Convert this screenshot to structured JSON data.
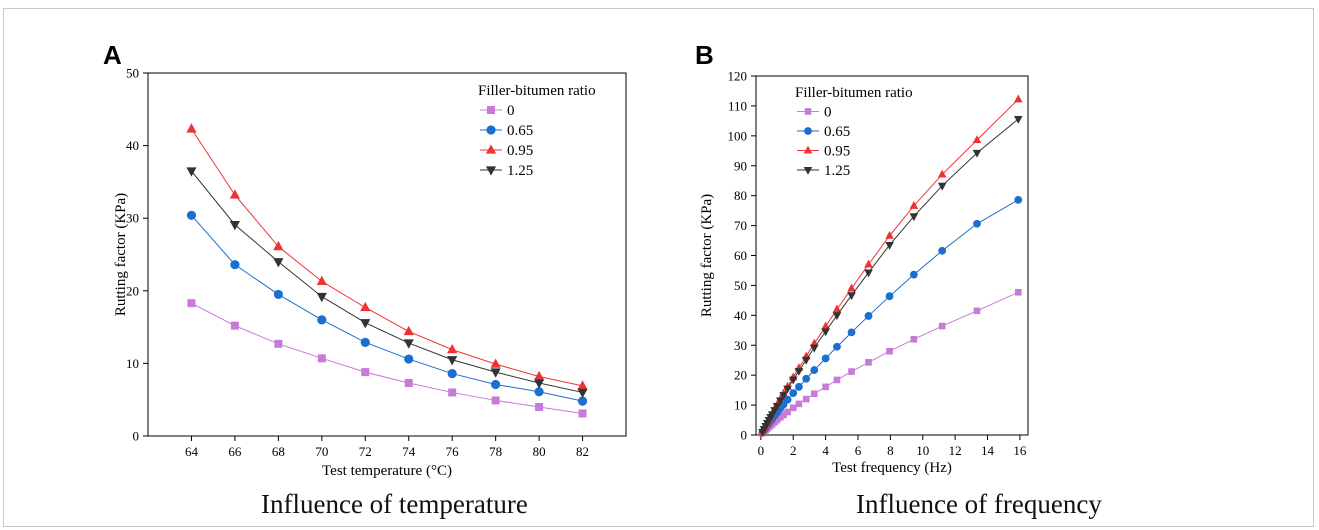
{
  "chart_data": [
    {
      "type": "line",
      "panel": "A",
      "caption": "Influence of temperature",
      "xlabel": "Test temperature (°C)",
      "ylabel": "Rutting factor (KPa)",
      "xlim": [
        62,
        84
      ],
      "ylim": [
        0,
        50
      ],
      "xticks": [
        64,
        66,
        68,
        70,
        72,
        74,
        76,
        78,
        80,
        82
      ],
      "yticks": [
        0,
        10,
        20,
        30,
        40,
        50
      ],
      "legend_title": "Filler-bitumen ratio",
      "legend_position": "top-right",
      "x": [
        64,
        66,
        68,
        70,
        72,
        74,
        76,
        78,
        80,
        82
      ],
      "series": [
        {
          "name": "0",
          "color": "#c77ad8",
          "marker": "square",
          "values": [
            18.3,
            15.2,
            12.7,
            10.7,
            8.8,
            7.3,
            6.0,
            4.9,
            4.0,
            3.1
          ]
        },
        {
          "name": "0.65",
          "color": "#1a6fd1",
          "marker": "circle",
          "values": [
            30.4,
            23.6,
            19.5,
            16.0,
            12.9,
            10.6,
            8.6,
            7.1,
            6.1,
            4.8
          ]
        },
        {
          "name": "0.95",
          "color": "#ee3333",
          "marker": "triangle-up",
          "values": [
            42.3,
            33.2,
            26.1,
            21.3,
            17.7,
            14.4,
            11.9,
            9.9,
            8.2,
            6.9
          ]
        },
        {
          "name": "1.25",
          "color": "#333333",
          "marker": "triangle-down",
          "values": [
            36.5,
            29.1,
            24.0,
            19.2,
            15.6,
            12.8,
            10.5,
            8.8,
            7.3,
            6.0
          ]
        }
      ]
    },
    {
      "type": "line",
      "panel": "B",
      "caption": "Influence of frequency",
      "xlabel": "Test frequency (Hz)",
      "ylabel": "Rutting factor (KPa)",
      "xlim": [
        -0.3,
        16.5
      ],
      "ylim": [
        0,
        120
      ],
      "xticks": [
        0,
        2,
        4,
        6,
        8,
        10,
        12,
        14,
        16
      ],
      "yticks": [
        0,
        10,
        20,
        30,
        40,
        50,
        60,
        70,
        80,
        90,
        100,
        110,
        120
      ],
      "legend_title": "Filler-bitumen ratio",
      "legend_position": "top-left",
      "x": [
        0.1,
        0.2,
        0.3,
        0.4,
        0.5,
        0.6,
        0.7,
        0.85,
        1.0,
        1.2,
        1.4,
        1.65,
        2.0,
        2.35,
        2.8,
        3.3,
        4.0,
        4.7,
        5.6,
        6.65,
        7.95,
        9.45,
        11.2,
        13.35,
        15.9
      ],
      "series": [
        {
          "name": "0",
          "color": "#c77ad8",
          "marker": "square",
          "values": [
            0.6,
            1.2,
            1.7,
            2.2,
            2.7,
            3.2,
            3.6,
            4.3,
            5.0,
            5.9,
            6.7,
            7.7,
            9.1,
            10.4,
            12.0,
            13.8,
            16.1,
            18.4,
            21.2,
            24.3,
            28.0,
            32.0,
            36.4,
            41.5,
            47.7
          ]
        },
        {
          "name": "0.65",
          "color": "#1a6fd1",
          "marker": "circle",
          "values": [
            0.8,
            1.6,
            2.4,
            3.2,
            4.0,
            4.7,
            5.4,
            6.5,
            7.5,
            8.9,
            10.2,
            11.8,
            14.0,
            16.1,
            18.8,
            21.7,
            25.6,
            29.5,
            34.3,
            39.8,
            46.4,
            53.6,
            61.6,
            70.6,
            78.6
          ]
        },
        {
          "name": "0.95",
          "color": "#ee3333",
          "marker": "triangle-up",
          "values": [
            1.0,
            2.1,
            3.1,
            4.2,
            5.2,
            6.2,
            7.2,
            8.7,
            10.1,
            12.0,
            13.9,
            16.2,
            19.3,
            22.4,
            26.3,
            30.6,
            36.3,
            42.0,
            49.0,
            57.0,
            66.6,
            76.6,
            87.1,
            98.6,
            112.2
          ]
        },
        {
          "name": "1.25",
          "color": "#333333",
          "marker": "triangle-down",
          "values": [
            1.0,
            2.0,
            3.0,
            4.0,
            5.0,
            6.0,
            6.9,
            8.3,
            9.7,
            11.5,
            13.3,
            15.5,
            18.5,
            21.4,
            25.1,
            29.2,
            34.6,
            40.0,
            46.7,
            54.3,
            63.5,
            73.1,
            83.3,
            94.3,
            105.6
          ]
        }
      ]
    }
  ]
}
